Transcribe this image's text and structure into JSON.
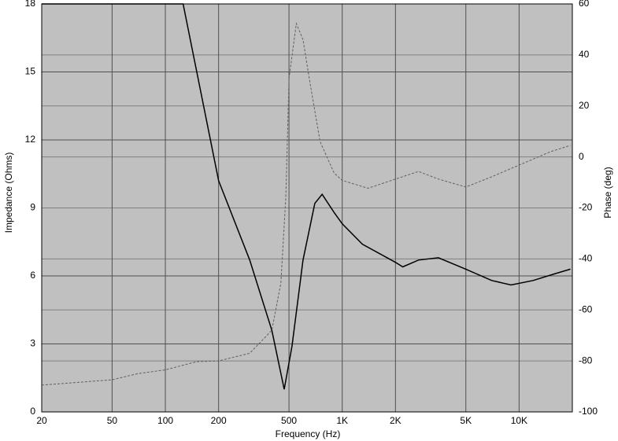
{
  "chart_data": {
    "type": "line",
    "xlabel": "Frequency (Hz)",
    "ylabel": "Impedance (Ohms)",
    "y2label": "Phase (deg)",
    "xscale": "log",
    "grid": true,
    "xlim": [
      20,
      20000
    ],
    "xticks": [
      20,
      50,
      100,
      200,
      500,
      {
        "value": 1000,
        "label": "1K"
      },
      {
        "value": 2000,
        "label": "2K"
      },
      {
        "value": 5000,
        "label": "5K"
      },
      {
        "value": 10000,
        "label": "10K"
      }
    ],
    "ylim": [
      0,
      18
    ],
    "yticks": [
      0,
      3,
      6,
      9,
      12,
      15,
      18
    ],
    "y2lim": [
      -100,
      60
    ],
    "y2ticks": [
      -100,
      -80,
      -60,
      -40,
      -20,
      0,
      20,
      40,
      60
    ],
    "series": [
      {
        "color": "#000000",
        "style": "solid",
        "x": [
          20,
          126,
          200,
          300,
          400,
          470,
          520,
          600,
          700,
          770,
          900,
          1000,
          1300,
          2000,
          2200,
          2700,
          3500,
          5000,
          7000,
          9000,
          12000,
          16000,
          19500
        ],
        "values": [
          18,
          18,
          10.2,
          6.7,
          3.6,
          1.0,
          2.9,
          6.7,
          9.2,
          9.6,
          8.8,
          8.3,
          7.4,
          6.6,
          6.4,
          6.7,
          6.8,
          6.3,
          5.8,
          5.6,
          5.8,
          6.1,
          6.3
        ]
      },
      {
        "color": "#606060",
        "style": "dashed",
        "axis": "y2",
        "x": [
          20,
          50,
          70,
          100,
          150,
          200,
          300,
          400,
          450,
          480,
          500,
          550,
          600,
          650,
          750,
          900,
          1000,
          1400,
          2000,
          2700,
          3500,
          5000,
          7000,
          10000,
          15000,
          19500
        ],
        "values": [
          -89.5,
          -87.4,
          -85,
          -83.5,
          -80.3,
          -80,
          -77,
          -68,
          -49.4,
          -15.5,
          30.7,
          52.3,
          46,
          31,
          6,
          -6.3,
          -9.2,
          -12.3,
          -8.7,
          -5.7,
          -8.7,
          -11.8,
          -7.8,
          -3.2,
          2,
          4.5
        ]
      }
    ]
  }
}
